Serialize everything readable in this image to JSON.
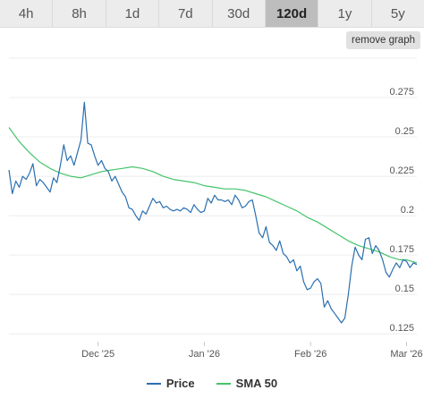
{
  "range_tabs": [
    {
      "label": "4h",
      "active": false
    },
    {
      "label": "8h",
      "active": false
    },
    {
      "label": "1d",
      "active": false
    },
    {
      "label": "7d",
      "active": false
    },
    {
      "label": "30d",
      "active": false
    },
    {
      "label": "120d",
      "active": true
    },
    {
      "label": "1y",
      "active": false
    },
    {
      "label": "5y",
      "active": false
    }
  ],
  "remove_graph_label": "remove graph",
  "legend": {
    "price_label": "Price",
    "sma_label": "SMA 50"
  },
  "colors": {
    "price": "#2a6fb0",
    "sma": "#45c46b",
    "grid": "#ececec",
    "active_tab": "#bdbdbd"
  },
  "chart_data": {
    "type": "line",
    "xlabels": [
      "Dec '25",
      "Jan '26",
      "Feb '26",
      "Mar '26"
    ],
    "ylabels": [
      "0.275",
      "0.25",
      "0.225",
      "0.2",
      "0.175",
      "0.15",
      "0.125"
    ],
    "yticks": [
      0.275,
      0.25,
      0.225,
      0.2,
      0.175,
      0.15,
      0.125
    ],
    "ylim": [
      0.12,
      0.3
    ],
    "xlim": [
      "2025-11-05",
      "2026-03-04"
    ],
    "xticks": [
      "2025-12-01",
      "2026-01-01",
      "2026-02-01",
      "2026-03-01"
    ],
    "grid": true,
    "legend_position": "bottom",
    "series": [
      {
        "name": "Price",
        "points": [
          [
            "2025-11-05",
            0.229
          ],
          [
            "2025-11-06",
            0.214
          ],
          [
            "2025-11-07",
            0.222
          ],
          [
            "2025-11-08",
            0.218
          ],
          [
            "2025-11-09",
            0.225
          ],
          [
            "2025-11-10",
            0.223
          ],
          [
            "2025-11-11",
            0.227
          ],
          [
            "2025-11-12",
            0.233
          ],
          [
            "2025-11-13",
            0.219
          ],
          [
            "2025-11-14",
            0.223
          ],
          [
            "2025-11-15",
            0.221
          ],
          [
            "2025-11-16",
            0.218
          ],
          [
            "2025-11-17",
            0.215
          ],
          [
            "2025-11-18",
            0.224
          ],
          [
            "2025-11-19",
            0.221
          ],
          [
            "2025-11-20",
            0.232
          ],
          [
            "2025-11-21",
            0.245
          ],
          [
            "2025-11-22",
            0.235
          ],
          [
            "2025-11-23",
            0.238
          ],
          [
            "2025-11-24",
            0.232
          ],
          [
            "2025-11-25",
            0.24
          ],
          [
            "2025-11-26",
            0.248
          ],
          [
            "2025-11-27",
            0.272
          ],
          [
            "2025-11-28",
            0.246
          ],
          [
            "2025-11-29",
            0.245
          ],
          [
            "2025-11-30",
            0.238
          ],
          [
            "2025-12-01",
            0.232
          ],
          [
            "2025-12-02",
            0.235
          ],
          [
            "2025-12-03",
            0.23
          ],
          [
            "2025-12-04",
            0.228
          ],
          [
            "2025-12-05",
            0.222
          ],
          [
            "2025-12-06",
            0.225
          ],
          [
            "2025-12-07",
            0.22
          ],
          [
            "2025-12-08",
            0.215
          ],
          [
            "2025-12-09",
            0.212
          ],
          [
            "2025-12-10",
            0.205
          ],
          [
            "2025-12-11",
            0.204
          ],
          [
            "2025-12-12",
            0.2
          ],
          [
            "2025-12-13",
            0.197
          ],
          [
            "2025-12-14",
            0.203
          ],
          [
            "2025-12-15",
            0.201
          ],
          [
            "2025-12-16",
            0.206
          ],
          [
            "2025-12-17",
            0.211
          ],
          [
            "2025-12-18",
            0.208
          ],
          [
            "2025-12-19",
            0.209
          ],
          [
            "2025-12-20",
            0.205
          ],
          [
            "2025-12-21",
            0.206
          ],
          [
            "2025-12-22",
            0.204
          ],
          [
            "2025-12-23",
            0.203
          ],
          [
            "2025-12-24",
            0.204
          ],
          [
            "2025-12-25",
            0.203
          ],
          [
            "2025-12-26",
            0.205
          ],
          [
            "2025-12-27",
            0.204
          ],
          [
            "2025-12-28",
            0.202
          ],
          [
            "2025-12-29",
            0.207
          ],
          [
            "2025-12-30",
            0.204
          ],
          [
            "2025-12-31",
            0.202
          ],
          [
            "2026-01-01",
            0.203
          ],
          [
            "2026-01-02",
            0.211
          ],
          [
            "2026-01-03",
            0.208
          ],
          [
            "2026-01-04",
            0.213
          ],
          [
            "2026-01-05",
            0.21
          ],
          [
            "2026-01-06",
            0.21
          ],
          [
            "2026-01-07",
            0.209
          ],
          [
            "2026-01-08",
            0.21
          ],
          [
            "2026-01-09",
            0.207
          ],
          [
            "2026-01-10",
            0.213
          ],
          [
            "2026-01-11",
            0.21
          ],
          [
            "2026-01-12",
            0.205
          ],
          [
            "2026-01-13",
            0.206
          ],
          [
            "2026-01-14",
            0.209
          ],
          [
            "2026-01-15",
            0.21
          ],
          [
            "2026-01-16",
            0.2
          ],
          [
            "2026-01-17",
            0.189
          ],
          [
            "2026-01-18",
            0.186
          ],
          [
            "2026-01-19",
            0.193
          ],
          [
            "2026-01-20",
            0.183
          ],
          [
            "2026-01-21",
            0.181
          ],
          [
            "2026-01-22",
            0.178
          ],
          [
            "2026-01-23",
            0.184
          ],
          [
            "2026-01-24",
            0.176
          ],
          [
            "2026-01-25",
            0.174
          ],
          [
            "2026-01-26",
            0.17
          ],
          [
            "2026-01-27",
            0.172
          ],
          [
            "2026-01-28",
            0.165
          ],
          [
            "2026-01-29",
            0.168
          ],
          [
            "2026-01-30",
            0.158
          ],
          [
            "2026-01-31",
            0.153
          ],
          [
            "2026-02-01",
            0.154
          ],
          [
            "2026-02-02",
            0.158
          ],
          [
            "2026-02-03",
            0.16
          ],
          [
            "2026-02-04",
            0.157
          ],
          [
            "2026-02-05",
            0.142
          ],
          [
            "2026-02-06",
            0.146
          ],
          [
            "2026-02-07",
            0.141
          ],
          [
            "2026-02-08",
            0.138
          ],
          [
            "2026-02-09",
            0.135
          ],
          [
            "2026-02-10",
            0.132
          ],
          [
            "2026-02-11",
            0.135
          ],
          [
            "2026-02-12",
            0.15
          ],
          [
            "2026-02-13",
            0.168
          ],
          [
            "2026-02-14",
            0.18
          ],
          [
            "2026-02-15",
            0.175
          ],
          [
            "2026-02-16",
            0.172
          ],
          [
            "2026-02-17",
            0.185
          ],
          [
            "2026-02-18",
            0.186
          ],
          [
            "2026-02-19",
            0.176
          ],
          [
            "2026-02-20",
            0.181
          ],
          [
            "2026-02-21",
            0.178
          ],
          [
            "2026-02-22",
            0.172
          ],
          [
            "2026-02-23",
            0.164
          ],
          [
            "2026-02-24",
            0.161
          ],
          [
            "2026-02-25",
            0.166
          ],
          [
            "2026-02-26",
            0.17
          ],
          [
            "2026-02-27",
            0.167
          ],
          [
            "2026-02-28",
            0.172
          ],
          [
            "2026-03-01",
            0.171
          ],
          [
            "2026-03-02",
            0.167
          ],
          [
            "2026-03-03",
            0.17
          ],
          [
            "2026-03-04",
            0.169
          ]
        ]
      },
      {
        "name": "SMA 50",
        "points": [
          [
            "2025-11-05",
            0.256
          ],
          [
            "2025-11-08",
            0.247
          ],
          [
            "2025-11-11",
            0.24
          ],
          [
            "2025-11-14",
            0.234
          ],
          [
            "2025-11-17",
            0.23
          ],
          [
            "2025-11-20",
            0.227
          ],
          [
            "2025-11-23",
            0.225
          ],
          [
            "2025-11-26",
            0.224
          ],
          [
            "2025-11-29",
            0.226
          ],
          [
            "2025-12-02",
            0.228
          ],
          [
            "2025-12-05",
            0.229
          ],
          [
            "2025-12-08",
            0.23
          ],
          [
            "2025-12-11",
            0.231
          ],
          [
            "2025-12-14",
            0.23
          ],
          [
            "2025-12-17",
            0.228
          ],
          [
            "2025-12-20",
            0.225
          ],
          [
            "2025-12-23",
            0.223
          ],
          [
            "2025-12-26",
            0.222
          ],
          [
            "2025-12-29",
            0.221
          ],
          [
            "2026-01-01",
            0.219
          ],
          [
            "2026-01-04",
            0.218
          ],
          [
            "2026-01-07",
            0.217
          ],
          [
            "2026-01-10",
            0.217
          ],
          [
            "2026-01-13",
            0.216
          ],
          [
            "2026-01-16",
            0.214
          ],
          [
            "2026-01-19",
            0.212
          ],
          [
            "2026-01-22",
            0.209
          ],
          [
            "2026-01-25",
            0.206
          ],
          [
            "2026-01-28",
            0.203
          ],
          [
            "2026-01-31",
            0.199
          ],
          [
            "2026-02-03",
            0.196
          ],
          [
            "2026-02-06",
            0.192
          ],
          [
            "2026-02-09",
            0.188
          ],
          [
            "2026-02-12",
            0.184
          ],
          [
            "2026-02-15",
            0.181
          ],
          [
            "2026-02-18",
            0.179
          ],
          [
            "2026-02-21",
            0.177
          ],
          [
            "2026-02-24",
            0.174
          ],
          [
            "2026-02-27",
            0.172
          ],
          [
            "2026-03-01",
            0.172
          ],
          [
            "2026-03-04",
            0.17
          ]
        ]
      }
    ]
  }
}
